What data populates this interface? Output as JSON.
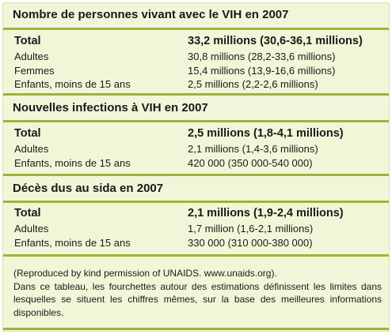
{
  "sections": [
    {
      "title": "Nombre de personnes vivant avec le VIH en 2007",
      "rows": [
        {
          "label": "Total",
          "value": "33,2 millions (30,6-36,1 millions)"
        },
        {
          "label": "Adultes",
          "value": "30,8 millions (28,2-33,6 millions)"
        },
        {
          "label": "Femmes",
          "value": "15,4 millions (13,9-16,6 millions)"
        },
        {
          "label": "Enfants, moins de 15 ans",
          "value": "2,5 millions (2,2-2,6 millions)"
        }
      ]
    },
    {
      "title": "Nouvelles infections à VIH en 2007",
      "rows": [
        {
          "label": "Total",
          "value": "2,5 millions (1,8-4,1 millions)"
        },
        {
          "label": "Adultes",
          "value": "2,1 millions (1,4-3,6 millions)"
        },
        {
          "label": "Enfants, moins de 15 ans",
          "value": "420 000 (350 000-540 000)"
        }
      ]
    },
    {
      "title": "Décès dus au sida en 2007",
      "rows": [
        {
          "label": "Total",
          "value": "2,1 millions (1,9-2,4 millions)"
        },
        {
          "label": "Adultes",
          "value": "1,7 million (1,6-2,1 millions)"
        },
        {
          "label": "Enfants, moins de 15 ans",
          "value": "330 000 (310 000-380 000)"
        }
      ]
    }
  ],
  "notes": {
    "credit": "(Reproduced by kind permission of UNAIDS. www.unaids.org).",
    "explanation": "Dans ce tableau, les fourchettes autour des estimations définissent les limites dans lesquelles se situent les chiffres mêmes, sur la base des meilleures informations disponibles."
  },
  "colors": {
    "background": "#f2f6d9",
    "rule": "#9bb53a"
  }
}
